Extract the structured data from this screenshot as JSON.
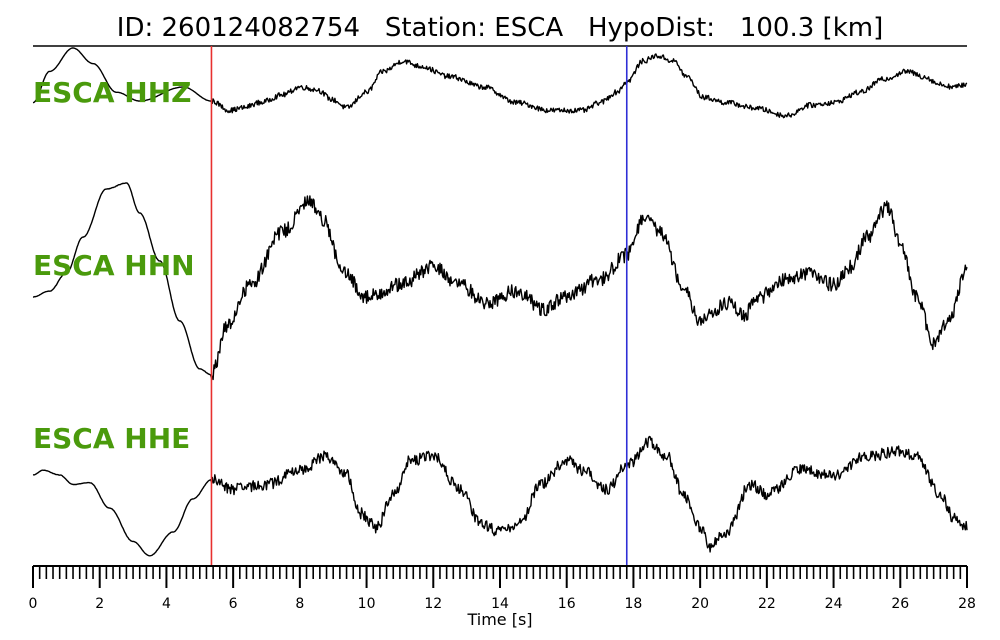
{
  "title": {
    "id_label": "ID:",
    "event_id": "260124082754",
    "station_label": "Station:",
    "station": "ESCA",
    "hypodist_label": "HypoDist:",
    "hypodist_value": "100.3",
    "hypodist_unit": "[km]"
  },
  "colors": {
    "trace": "#000000",
    "label": "#4a9a0c",
    "p_pick": "#e8302f",
    "s_pick": "#2f2fd6",
    "axis": "#000000"
  },
  "chart_data": {
    "type": "line",
    "title": "ID: 260124082754   Station: ESCA   HypoDist:   100.3 [km]",
    "xlabel": "Time [s]",
    "ylabel": "",
    "xlim": [
      0,
      28
    ],
    "xticks_major": [
      0,
      2,
      4,
      6,
      8,
      10,
      12,
      14,
      16,
      18,
      20,
      22,
      24,
      26,
      28
    ],
    "xtick_labels": [
      "0",
      "2",
      "4",
      "6",
      "8",
      "10",
      "12",
      "14",
      "16",
      "18",
      "20",
      "22",
      "24",
      "26",
      "28"
    ],
    "minor_tick_step": 0.2,
    "grid": false,
    "picks": [
      {
        "phase": "P",
        "time": 5.35,
        "color": "#e8302f"
      },
      {
        "phase": "S",
        "time": 17.8,
        "color": "#2f2fd6"
      }
    ],
    "series": [
      {
        "name": "ESCA HHZ",
        "noise": 0.05,
        "x": [
          0,
          0.5,
          1.2,
          1.8,
          2.5,
          3.2,
          4.5,
          5.35,
          5.9,
          6.3,
          6.8,
          7.5,
          8.0,
          8.5,
          9.0,
          9.4,
          10.0,
          10.5,
          11.1,
          11.6,
          12.5,
          13.5,
          14.5,
          15.5,
          16.5,
          17.0,
          17.5,
          17.8,
          18.3,
          18.7,
          19.2,
          19.6,
          20.1,
          20.8,
          21.6,
          22.6,
          23.3,
          24.0,
          24.8,
          25.5,
          26.2,
          26.7,
          27.2,
          27.6,
          28.0
        ],
        "y": [
          -0.05,
          0.55,
          1.0,
          0.7,
          0.15,
          -0.02,
          0.25,
          -0.02,
          -0.2,
          -0.15,
          -0.05,
          0.1,
          0.25,
          0.2,
          0.0,
          -0.15,
          0.15,
          0.55,
          0.75,
          0.65,
          0.45,
          0.25,
          -0.05,
          -0.2,
          -0.2,
          -0.05,
          0.15,
          0.35,
          0.75,
          0.85,
          0.75,
          0.45,
          0.05,
          -0.05,
          -0.15,
          -0.3,
          -0.1,
          -0.05,
          0.15,
          0.4,
          0.55,
          0.45,
          0.3,
          0.25,
          0.3
        ]
      },
      {
        "name": "ESCA HHN",
        "noise": 0.06,
        "x": [
          0,
          0.5,
          1.0,
          1.5,
          2.2,
          2.8,
          3.2,
          3.8,
          4.4,
          5.0,
          5.35,
          5.8,
          6.5,
          7.5,
          8.3,
          8.7,
          9.3,
          10.0,
          11.0,
          12.0,
          12.8,
          13.6,
          14.5,
          15.3,
          16.0,
          17.0,
          17.8,
          18.3,
          18.8,
          19.5,
          20.0,
          20.3,
          20.8,
          21.3,
          21.8,
          22.5,
          23.3,
          24.0,
          24.5,
          25.0,
          25.6,
          26.0,
          26.5,
          27.0,
          27.5,
          28.0
        ],
        "y": [
          -0.1,
          -0.05,
          0.1,
          0.4,
          0.8,
          0.85,
          0.6,
          0.2,
          -0.3,
          -0.7,
          -0.75,
          -0.35,
          0.0,
          0.45,
          0.7,
          0.55,
          0.1,
          -0.1,
          0.0,
          0.15,
          0.0,
          -0.15,
          -0.05,
          -0.2,
          -0.1,
          0.05,
          0.25,
          0.55,
          0.45,
          0.0,
          -0.3,
          -0.25,
          -0.15,
          -0.25,
          -0.1,
          0.05,
          0.1,
          0.0,
          0.15,
          0.4,
          0.65,
          0.35,
          -0.1,
          -0.5,
          -0.25,
          0.15
        ]
      },
      {
        "name": "ESCA HHE",
        "noise": 0.06,
        "x": [
          0,
          0.3,
          0.8,
          1.2,
          1.7,
          2.3,
          3.0,
          3.5,
          4.2,
          4.8,
          5.35,
          6.0,
          7.0,
          8.0,
          8.8,
          9.4,
          9.8,
          10.3,
          10.8,
          11.3,
          12.0,
          12.8,
          13.4,
          14.0,
          14.6,
          15.2,
          16.0,
          16.5,
          17.2,
          17.8,
          18.5,
          19.0,
          19.5,
          20.0,
          20.3,
          20.8,
          21.5,
          22.0,
          23.0,
          24.0,
          25.0,
          26.0,
          26.5,
          27.2,
          27.6,
          28.0
        ],
        "y": [
          0.0,
          0.05,
          0.0,
          -0.1,
          -0.08,
          -0.35,
          -0.7,
          -0.85,
          -0.6,
          -0.25,
          -0.05,
          -0.15,
          -0.1,
          0.05,
          0.2,
          0.0,
          -0.4,
          -0.55,
          -0.2,
          0.15,
          0.2,
          -0.15,
          -0.5,
          -0.6,
          -0.5,
          -0.1,
          0.15,
          0.05,
          -0.15,
          0.1,
          0.35,
          0.2,
          -0.2,
          -0.55,
          -0.75,
          -0.6,
          -0.1,
          -0.2,
          0.05,
          0.0,
          0.2,
          0.25,
          0.2,
          -0.2,
          -0.45,
          -0.55
        ]
      }
    ]
  }
}
